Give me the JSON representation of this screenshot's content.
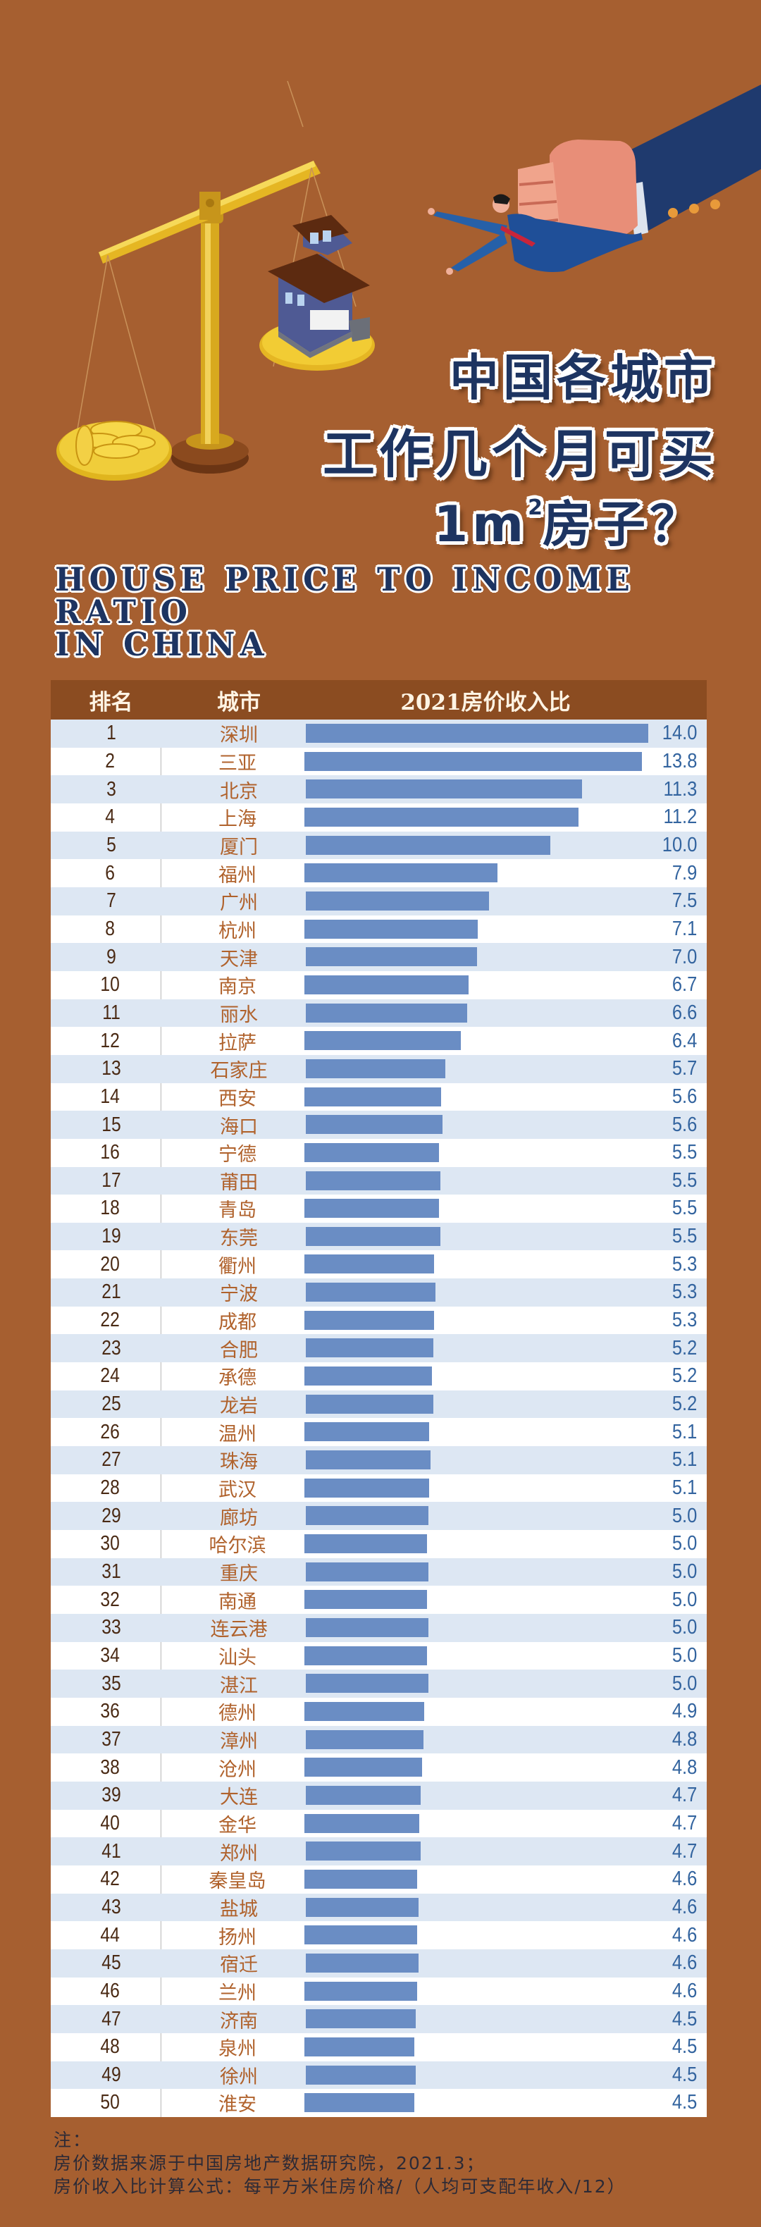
{
  "title": {
    "line1": "中国各城市",
    "line2": "工作几个月可买",
    "line3_prefix": "1m",
    "line3_sup": "2",
    "line3_suffix": "房子？",
    "english_line1": "HOUSE PRICE TO INCOME RATIO",
    "english_line2": "IN CHINA"
  },
  "table": {
    "headers": {
      "rank": "排名",
      "city": "城市",
      "ratio": "2021房价收入比"
    }
  },
  "colors": {
    "background": "#a65f30",
    "header": "#8b4c21",
    "bar": "#6a8dc4",
    "row_alt": "#dde7f3",
    "value_text": "#33649f",
    "city_text": "#b0622c",
    "title_text": "#1d3461"
  },
  "chart_data": {
    "type": "bar",
    "orientation": "horizontal",
    "title": "2021房价收入比",
    "xlabel": "",
    "ylabel": "",
    "xlim": [
      0,
      14.0
    ],
    "grid": false,
    "legend": null,
    "columns": [
      "排名",
      "城市",
      "2021房价收入比"
    ],
    "categories": [
      "深圳",
      "三亚",
      "北京",
      "上海",
      "厦门",
      "福州",
      "广州",
      "杭州",
      "天津",
      "南京",
      "丽水",
      "拉萨",
      "石家庄",
      "西安",
      "海口",
      "宁德",
      "莆田",
      "青岛",
      "东莞",
      "衢州",
      "宁波",
      "成都",
      "合肥",
      "承德",
      "龙岩",
      "温州",
      "珠海",
      "武汉",
      "廊坊",
      "哈尔滨",
      "重庆",
      "南通",
      "连云港",
      "汕头",
      "湛江",
      "德州",
      "漳州",
      "沧州",
      "大连",
      "金华",
      "郑州",
      "秦皇岛",
      "盐城",
      "扬州",
      "宿迁",
      "兰州",
      "济南",
      "泉州",
      "徐州",
      "淮安"
    ],
    "values": [
      14.0,
      13.8,
      11.3,
      11.2,
      10.0,
      7.9,
      7.5,
      7.1,
      7.0,
      6.7,
      6.6,
      6.4,
      5.7,
      5.6,
      5.6,
      5.5,
      5.5,
      5.5,
      5.5,
      5.3,
      5.3,
      5.3,
      5.2,
      5.2,
      5.2,
      5.1,
      5.1,
      5.1,
      5.0,
      5.0,
      5.0,
      5.0,
      5.0,
      5.0,
      5.0,
      4.9,
      4.8,
      4.8,
      4.7,
      4.7,
      4.7,
      4.6,
      4.6,
      4.6,
      4.6,
      4.6,
      4.5,
      4.5,
      4.5,
      4.5
    ],
    "rows": [
      {
        "rank": "1",
        "city": "深圳",
        "value": "14.0"
      },
      {
        "rank": "2",
        "city": "三亚",
        "value": "13.8"
      },
      {
        "rank": "3",
        "city": "北京",
        "value": "11.3"
      },
      {
        "rank": "4",
        "city": "上海",
        "value": "11.2"
      },
      {
        "rank": "5",
        "city": "厦门",
        "value": "10.0"
      },
      {
        "rank": "6",
        "city": "福州",
        "value": "7.9"
      },
      {
        "rank": "7",
        "city": "广州",
        "value": "7.5"
      },
      {
        "rank": "8",
        "city": "杭州",
        "value": "7.1"
      },
      {
        "rank": "9",
        "city": "天津",
        "value": "7.0"
      },
      {
        "rank": "10",
        "city": "南京",
        "value": "6.7"
      },
      {
        "rank": "11",
        "city": "丽水",
        "value": "6.6"
      },
      {
        "rank": "12",
        "city": "拉萨",
        "value": "6.4"
      },
      {
        "rank": "13",
        "city": "石家庄",
        "value": "5.7"
      },
      {
        "rank": "14",
        "city": "西安",
        "value": "5.6"
      },
      {
        "rank": "15",
        "city": "海口",
        "value": "5.6"
      },
      {
        "rank": "16",
        "city": "宁德",
        "value": "5.5"
      },
      {
        "rank": "17",
        "city": "莆田",
        "value": "5.5"
      },
      {
        "rank": "18",
        "city": "青岛",
        "value": "5.5"
      },
      {
        "rank": "19",
        "city": "东莞",
        "value": "5.5"
      },
      {
        "rank": "20",
        "city": "衢州",
        "value": "5.3"
      },
      {
        "rank": "21",
        "city": "宁波",
        "value": "5.3"
      },
      {
        "rank": "22",
        "city": "成都",
        "value": "5.3"
      },
      {
        "rank": "23",
        "city": "合肥",
        "value": "5.2"
      },
      {
        "rank": "24",
        "city": "承德",
        "value": "5.2"
      },
      {
        "rank": "25",
        "city": "龙岩",
        "value": "5.2"
      },
      {
        "rank": "26",
        "city": "温州",
        "value": "5.1"
      },
      {
        "rank": "27",
        "city": "珠海",
        "value": "5.1"
      },
      {
        "rank": "28",
        "city": "武汉",
        "value": "5.1"
      },
      {
        "rank": "29",
        "city": "廊坊",
        "value": "5.0"
      },
      {
        "rank": "30",
        "city": "哈尔滨",
        "value": "5.0"
      },
      {
        "rank": "31",
        "city": "重庆",
        "value": "5.0"
      },
      {
        "rank": "32",
        "city": "南通",
        "value": "5.0"
      },
      {
        "rank": "33",
        "city": "连云港",
        "value": "5.0"
      },
      {
        "rank": "34",
        "city": "汕头",
        "value": "5.0"
      },
      {
        "rank": "35",
        "city": "湛江",
        "value": "5.0"
      },
      {
        "rank": "36",
        "city": "德州",
        "value": "4.9"
      },
      {
        "rank": "37",
        "city": "漳州",
        "value": "4.8"
      },
      {
        "rank": "38",
        "city": "沧州",
        "value": "4.8"
      },
      {
        "rank": "39",
        "city": "大连",
        "value": "4.7"
      },
      {
        "rank": "40",
        "city": "金华",
        "value": "4.7"
      },
      {
        "rank": "41",
        "city": "郑州",
        "value": "4.7"
      },
      {
        "rank": "42",
        "city": "秦皇岛",
        "value": "4.6"
      },
      {
        "rank": "43",
        "city": "盐城",
        "value": "4.6"
      },
      {
        "rank": "44",
        "city": "扬州",
        "value": "4.6"
      },
      {
        "rank": "45",
        "city": "宿迁",
        "value": "4.6"
      },
      {
        "rank": "46",
        "city": "兰州",
        "value": "4.6"
      },
      {
        "rank": "47",
        "city": "济南",
        "value": "4.5"
      },
      {
        "rank": "48",
        "city": "泉州",
        "value": "4.5"
      },
      {
        "rank": "49",
        "city": "徐州",
        "value": "4.5"
      },
      {
        "rank": "50",
        "city": "淮安",
        "value": "4.5"
      }
    ]
  },
  "notes": {
    "label": "注：",
    "source": "房价数据来源于中国房地产数据研究院，2021.3；",
    "formula": "房价收入比计算公式：每平方米住房价格/（人均可支配年收入/12）"
  },
  "illustration": {
    "icons": [
      "balance-scale-icon",
      "gold-coins-icon",
      "house-icon",
      "giant-hand-icon",
      "businessman-icon"
    ]
  }
}
